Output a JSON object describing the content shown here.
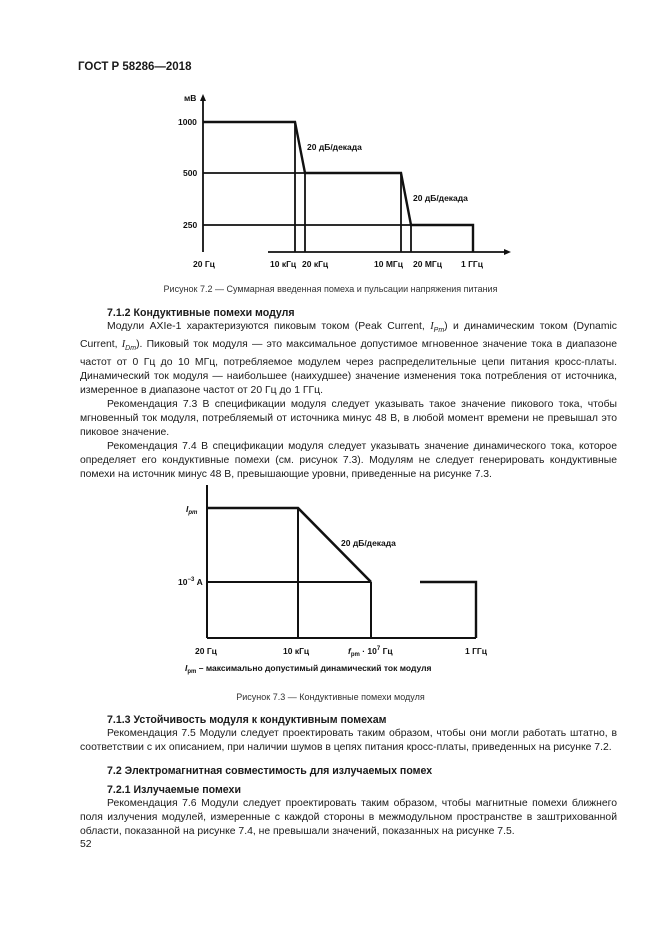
{
  "header": {
    "title": "ГОСТ Р 58286—2018"
  },
  "figure_7_2": {
    "y_unit": "мВ",
    "y_ticks": [
      "1000",
      "500",
      "250"
    ],
    "x_ticks": [
      "20 Гц",
      "10 кГц",
      "20 кГц",
      "10 МГц",
      "20 МГц",
      "1 ГГц"
    ],
    "slope_labels": [
      "20 дБ/декада",
      "20 дБ/декада"
    ],
    "caption": "Рисунок 7.2 — Суммарная введенная помеха и пульсации напряжения питания"
  },
  "section_7_1_2": {
    "heading": "7.1.2 Кондуктивные помехи модуля",
    "p1": {
      "a": "Модули AXIe-1 характеризуются пиковым током (Peak Current, ",
      "sym": "I",
      "sub1": "Pm",
      "b": ") и динамическим током (Dynamic Current, ",
      "sub2": "Dm",
      "c": "). Пиковый ток модуля — это максимальное допустимое мгновенное значение тока в диапазоне частот от 0 Гц до 10 МГц, потребляемое модулем через распределительные цепи питания кросс-платы. Динамический ток модуля — наибольшее (наихудшее) значение изменения тока потребления от источника, измеренное в диапазоне частот от 20 Гц до 1 ГГц."
    },
    "p2": "Рекомендация 7.3 В спецификации модуля следует указывать такое значение пикового тока, чтобы мгновенный ток модуля, потребляемый от источника минус 48 В, в любой момент времени не превышал это пиковое значение.",
    "p3": "Рекомендация 7.4 В спецификации модуля следует указывать значение динамического тока, которое определяет его кондуктивные помехи (см. рисунок 7.3). Модулям не следует генерировать кондуктивные помехи на источник минус 48 В, превышающие уровни, приведенные на рисунке 7.3."
  },
  "figure_7_3": {
    "y_ticks": [
      "I",
      "pm",
      "10",
      "−3",
      " А"
    ],
    "x_ticks": [
      "20 Гц",
      "10 кГц",
      "f",
      "pm",
      " · 10",
      "7",
      " Гц",
      "1 ГГц"
    ],
    "slope_label": "20 дБ/декада",
    "footnote_sym": "I",
    "footnote_sub": "pm",
    "footnote": " – максимально допустимый динамический ток модуля",
    "caption": "Рисунок 7.3 — Кондуктивные помехи модуля"
  },
  "section_7_1_3": {
    "heading": "7.1.3 Устойчивость модуля к кондуктивным помехам",
    "p1": "Рекомендация 7.5 Модули следует проектировать таким образом, чтобы они могли работать штатно, в соответствии с их описанием, при наличии шумов в цепях питания кросс-платы, приведенных на рисунке 7.2."
  },
  "section_7_2": {
    "heading": "7.2 Электромагнитная совместимость для излучаемых помех"
  },
  "section_7_2_1": {
    "heading": "7.2.1 Излучаемые помехи",
    "p1": "Рекомендация 7.6 Модули следует проектировать таким образом, чтобы магнитные помехи ближнего поля излучения модулей, измеренные с каждой стороны в межмодульном пространстве в заштрихованной области, показанной на рисунке 7.4, не превышали значений, показанных на рисунке 7.5."
  },
  "footer": {
    "page_number": "52"
  }
}
